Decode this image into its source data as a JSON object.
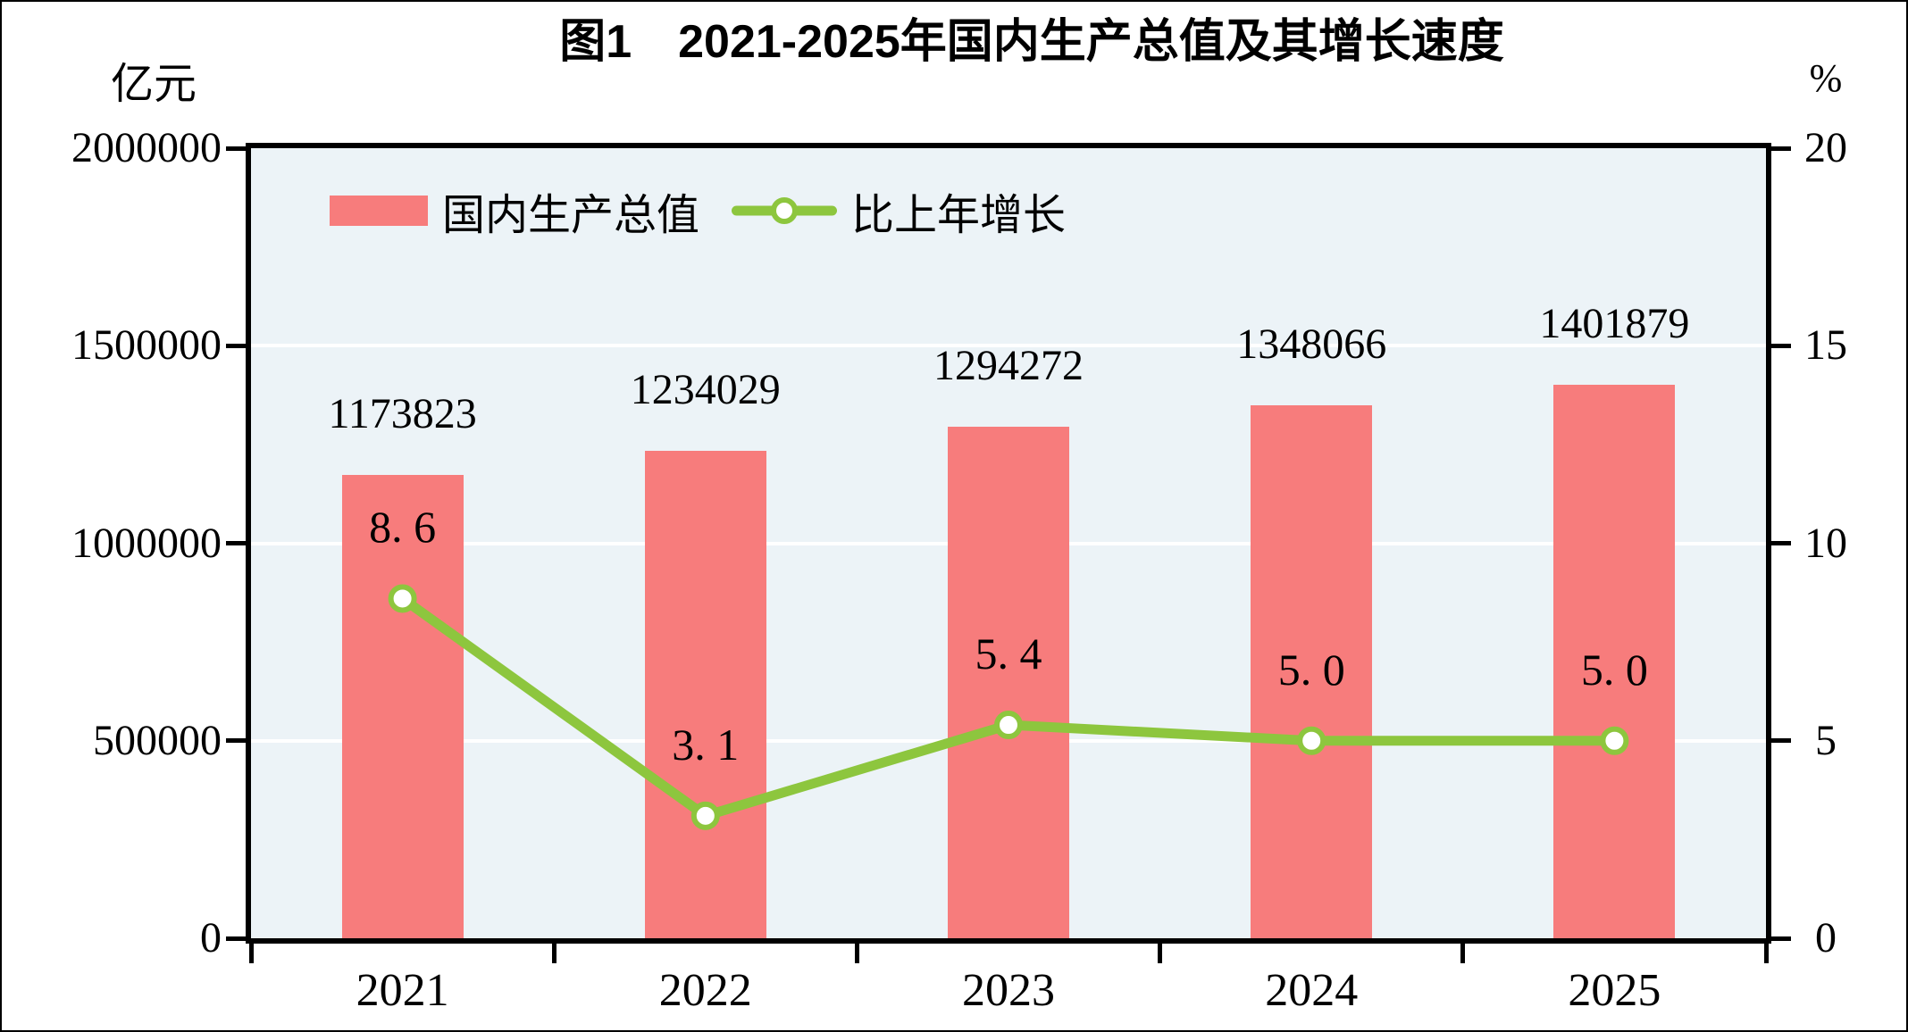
{
  "title": "图1　2021-2025年国内生产总值及其增长速度",
  "left_axis": {
    "unit": "亿元",
    "tick_labels": [
      "2000000",
      "1500000",
      "1000000",
      "500000",
      "0"
    ],
    "min": 0,
    "max": 2000000
  },
  "right_axis": {
    "unit": "%",
    "tick_labels": [
      "20",
      "15",
      "10",
      "5",
      "0"
    ],
    "min": 0,
    "max": 20
  },
  "legend": {
    "items": [
      {
        "label": "国内生产总值",
        "type": "bar"
      },
      {
        "label": "比上年增长",
        "type": "line"
      }
    ]
  },
  "chart_data": {
    "type": "bar+line",
    "title": "图1　2021-2025年国内生产总值及其增长速度",
    "categories": [
      "2021",
      "2022",
      "2023",
      "2024",
      "2025"
    ],
    "series": [
      {
        "name": "国内生产总值",
        "type": "bar",
        "axis": "left",
        "unit": "亿元",
        "color": "#F77C7C",
        "values": [
          1173823,
          1234029,
          1294272,
          1348066,
          1401879
        ],
        "data_labels": [
          "1173823",
          "1234029",
          "1294272",
          "1348066",
          "1401879"
        ]
      },
      {
        "name": "比上年增长",
        "type": "line",
        "axis": "right",
        "unit": "%",
        "color": "#8DC63E",
        "marker_fill": "#FFFFFF",
        "values": [
          8.6,
          3.1,
          5.4,
          5.0,
          5.0
        ],
        "data_labels": [
          "8. 6",
          "3. 1",
          "5. 4",
          "5. 0",
          "5. 0"
        ]
      }
    ],
    "left_ylim": [
      0,
      2000000
    ],
    "right_ylim": [
      0,
      20
    ],
    "grid": "horizontal-white",
    "legend_position": "inside-top-left",
    "plot_bg": "#ECF3F7"
  },
  "colors": {
    "bar": "#F77C7C",
    "line": "#8DC63E",
    "marker_fill": "#FFFFFF",
    "plot_bg": "#ECF3F7",
    "grid": "#FFFFFF",
    "axis": "#000000",
    "text": "#000000",
    "canvas_bg": "#FFFFFF"
  }
}
